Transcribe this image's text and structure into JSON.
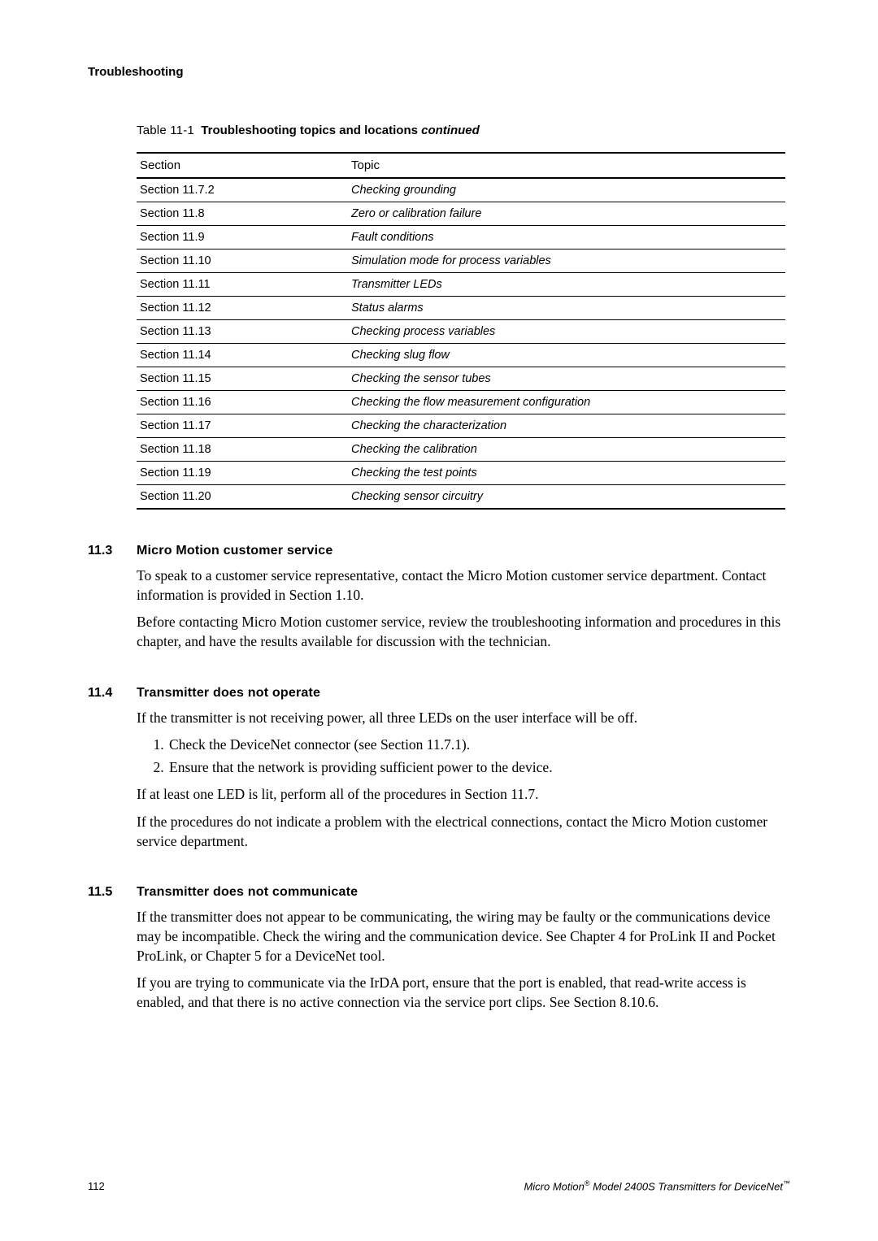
{
  "running_head": "Troubleshooting",
  "table": {
    "label": "Table 11-1",
    "title": "Troubleshooting topics and locations",
    "continued": "continued",
    "headers": {
      "section": "Section",
      "topic": "Topic"
    },
    "rows": [
      {
        "section": "Section 11.7.2",
        "topic": "Checking grounding"
      },
      {
        "section": "Section 11.8",
        "topic": "Zero or calibration failure"
      },
      {
        "section": "Section 11.9",
        "topic": "Fault conditions"
      },
      {
        "section": "Section 11.10",
        "topic": "Simulation mode for process variables"
      },
      {
        "section": "Section 11.11",
        "topic": "Transmitter LEDs"
      },
      {
        "section": "Section 11.12",
        "topic": "Status alarms"
      },
      {
        "section": "Section 11.13",
        "topic": "Checking process variables"
      },
      {
        "section": "Section 11.14",
        "topic": "Checking slug flow"
      },
      {
        "section": "Section 11.15",
        "topic": "Checking the sensor tubes"
      },
      {
        "section": "Section 11.16",
        "topic": "Checking the flow measurement configuration"
      },
      {
        "section": "Section 11.17",
        "topic": "Checking the characterization"
      },
      {
        "section": "Section 11.18",
        "topic": "Checking the calibration"
      },
      {
        "section": "Section 11.19",
        "topic": "Checking the test points"
      },
      {
        "section": "Section 11.20",
        "topic": "Checking sensor circuitry"
      }
    ]
  },
  "sections": {
    "s113": {
      "num": "11.3",
      "title": "Micro Motion customer service",
      "p1": "To speak to a customer service representative, contact the Micro Motion customer service department. Contact information is provided in Section 1.10.",
      "p2": "Before contacting Micro Motion customer service, review the troubleshooting information and procedures in this chapter, and have the results available for discussion with the technician."
    },
    "s114": {
      "num": "11.4",
      "title": "Transmitter does not operate",
      "p1": "If the transmitter is not receiving power, all three LEDs on the user interface will be off.",
      "li1": "Check the DeviceNet connector (see Section 11.7.1).",
      "li2": "Ensure that the network is providing sufficient power to the device.",
      "p2": "If at least one LED is lit, perform all of the procedures in Section 11.7.",
      "p3": "If the procedures do not indicate a problem with the electrical connections, contact the Micro Motion customer service department."
    },
    "s115": {
      "num": "11.5",
      "title": "Transmitter does not communicate",
      "p1": "If the transmitter does not appear to be communicating, the wiring may be faulty or the communications device may be incompatible. Check the wiring and the communication device. See Chapter 4 for ProLink II and Pocket ProLink, or Chapter 5 for a DeviceNet tool.",
      "p2": "If you are trying to communicate via the IrDA port, ensure that the port is enabled, that read-write access is enabled, and that there is no active connection via the service port clips. See Section 8.10.6."
    }
  },
  "footer": {
    "pageno": "112",
    "publication_prefix": "Micro Motion",
    "publication_mid": " Model 2400S Transmitters for DeviceNet",
    "reg": "®",
    "tm": "™"
  }
}
